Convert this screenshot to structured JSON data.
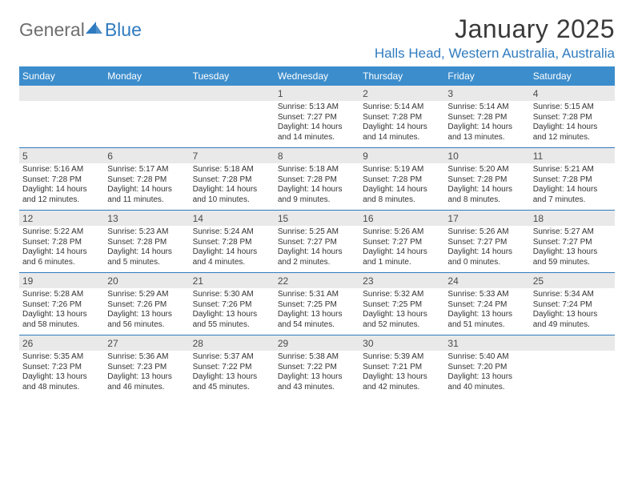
{
  "brand": {
    "text_general": "General",
    "text_blue": "Blue",
    "general_color": "#6e6e6e",
    "blue_color": "#2f7bbf",
    "icon_fill": "#2f7bbf"
  },
  "title": "January 2025",
  "location": "Halls Head, Western Australia, Australia",
  "colors": {
    "header_bg": "#3c8dcc",
    "header_text": "#ffffff",
    "daynum_bg": "#e9e9e9",
    "divider": "#2f7bbf",
    "body_text": "#333333",
    "title_text": "#3a3a3a",
    "location_text": "#2f7bbf",
    "page_bg": "#ffffff"
  },
  "weekdays": [
    "Sunday",
    "Monday",
    "Tuesday",
    "Wednesday",
    "Thursday",
    "Friday",
    "Saturday"
  ],
  "weeks": [
    {
      "nums": [
        "",
        "",
        "",
        "1",
        "2",
        "3",
        "4"
      ],
      "cells": [
        [],
        [],
        [],
        [
          "Sunrise: 5:13 AM",
          "Sunset: 7:27 PM",
          "Daylight: 14 hours",
          "and 14 minutes."
        ],
        [
          "Sunrise: 5:14 AM",
          "Sunset: 7:28 PM",
          "Daylight: 14 hours",
          "and 14 minutes."
        ],
        [
          "Sunrise: 5:14 AM",
          "Sunset: 7:28 PM",
          "Daylight: 14 hours",
          "and 13 minutes."
        ],
        [
          "Sunrise: 5:15 AM",
          "Sunset: 7:28 PM",
          "Daylight: 14 hours",
          "and 12 minutes."
        ]
      ]
    },
    {
      "nums": [
        "5",
        "6",
        "7",
        "8",
        "9",
        "10",
        "11"
      ],
      "cells": [
        [
          "Sunrise: 5:16 AM",
          "Sunset: 7:28 PM",
          "Daylight: 14 hours",
          "and 12 minutes."
        ],
        [
          "Sunrise: 5:17 AM",
          "Sunset: 7:28 PM",
          "Daylight: 14 hours",
          "and 11 minutes."
        ],
        [
          "Sunrise: 5:18 AM",
          "Sunset: 7:28 PM",
          "Daylight: 14 hours",
          "and 10 minutes."
        ],
        [
          "Sunrise: 5:18 AM",
          "Sunset: 7:28 PM",
          "Daylight: 14 hours",
          "and 9 minutes."
        ],
        [
          "Sunrise: 5:19 AM",
          "Sunset: 7:28 PM",
          "Daylight: 14 hours",
          "and 8 minutes."
        ],
        [
          "Sunrise: 5:20 AM",
          "Sunset: 7:28 PM",
          "Daylight: 14 hours",
          "and 8 minutes."
        ],
        [
          "Sunrise: 5:21 AM",
          "Sunset: 7:28 PM",
          "Daylight: 14 hours",
          "and 7 minutes."
        ]
      ]
    },
    {
      "nums": [
        "12",
        "13",
        "14",
        "15",
        "16",
        "17",
        "18"
      ],
      "cells": [
        [
          "Sunrise: 5:22 AM",
          "Sunset: 7:28 PM",
          "Daylight: 14 hours",
          "and 6 minutes."
        ],
        [
          "Sunrise: 5:23 AM",
          "Sunset: 7:28 PM",
          "Daylight: 14 hours",
          "and 5 minutes."
        ],
        [
          "Sunrise: 5:24 AM",
          "Sunset: 7:28 PM",
          "Daylight: 14 hours",
          "and 4 minutes."
        ],
        [
          "Sunrise: 5:25 AM",
          "Sunset: 7:27 PM",
          "Daylight: 14 hours",
          "and 2 minutes."
        ],
        [
          "Sunrise: 5:26 AM",
          "Sunset: 7:27 PM",
          "Daylight: 14 hours",
          "and 1 minute."
        ],
        [
          "Sunrise: 5:26 AM",
          "Sunset: 7:27 PM",
          "Daylight: 14 hours",
          "and 0 minutes."
        ],
        [
          "Sunrise: 5:27 AM",
          "Sunset: 7:27 PM",
          "Daylight: 13 hours",
          "and 59 minutes."
        ]
      ]
    },
    {
      "nums": [
        "19",
        "20",
        "21",
        "22",
        "23",
        "24",
        "25"
      ],
      "cells": [
        [
          "Sunrise: 5:28 AM",
          "Sunset: 7:26 PM",
          "Daylight: 13 hours",
          "and 58 minutes."
        ],
        [
          "Sunrise: 5:29 AM",
          "Sunset: 7:26 PM",
          "Daylight: 13 hours",
          "and 56 minutes."
        ],
        [
          "Sunrise: 5:30 AM",
          "Sunset: 7:26 PM",
          "Daylight: 13 hours",
          "and 55 minutes."
        ],
        [
          "Sunrise: 5:31 AM",
          "Sunset: 7:25 PM",
          "Daylight: 13 hours",
          "and 54 minutes."
        ],
        [
          "Sunrise: 5:32 AM",
          "Sunset: 7:25 PM",
          "Daylight: 13 hours",
          "and 52 minutes."
        ],
        [
          "Sunrise: 5:33 AM",
          "Sunset: 7:24 PM",
          "Daylight: 13 hours",
          "and 51 minutes."
        ],
        [
          "Sunrise: 5:34 AM",
          "Sunset: 7:24 PM",
          "Daylight: 13 hours",
          "and 49 minutes."
        ]
      ]
    },
    {
      "nums": [
        "26",
        "27",
        "28",
        "29",
        "30",
        "31",
        ""
      ],
      "cells": [
        [
          "Sunrise: 5:35 AM",
          "Sunset: 7:23 PM",
          "Daylight: 13 hours",
          "and 48 minutes."
        ],
        [
          "Sunrise: 5:36 AM",
          "Sunset: 7:23 PM",
          "Daylight: 13 hours",
          "and 46 minutes."
        ],
        [
          "Sunrise: 5:37 AM",
          "Sunset: 7:22 PM",
          "Daylight: 13 hours",
          "and 45 minutes."
        ],
        [
          "Sunrise: 5:38 AM",
          "Sunset: 7:22 PM",
          "Daylight: 13 hours",
          "and 43 minutes."
        ],
        [
          "Sunrise: 5:39 AM",
          "Sunset: 7:21 PM",
          "Daylight: 13 hours",
          "and 42 minutes."
        ],
        [
          "Sunrise: 5:40 AM",
          "Sunset: 7:20 PM",
          "Daylight: 13 hours",
          "and 40 minutes."
        ],
        []
      ]
    }
  ]
}
